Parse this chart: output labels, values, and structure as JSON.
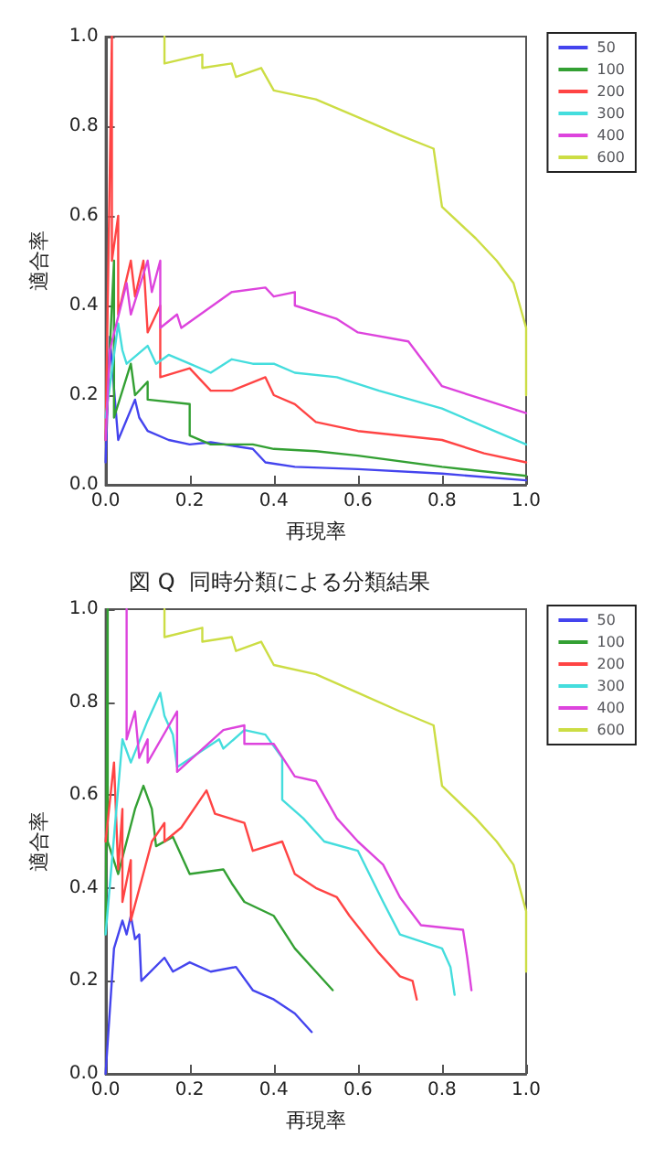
{
  "chart_data": [
    {
      "type": "line",
      "xlabel": "再現率",
      "ylabel": "適合率",
      "legend": "top right",
      "xlim": [
        0,
        1
      ],
      "ylim": [
        0,
        1
      ],
      "xticks": [
        {
          "value": 0,
          "label": "0.0"
        },
        {
          "value": 0.2,
          "label": "0.2"
        },
        {
          "value": 0.4,
          "label": "0.4"
        },
        {
          "value": 0.6,
          "label": "0.6"
        },
        {
          "value": 0.8,
          "label": "0.8"
        },
        {
          "value": 1,
          "label": "1.0"
        }
      ],
      "yticks": [
        {
          "value": 0,
          "label": "0.0"
        },
        {
          "value": 0.2,
          "label": "0.2"
        },
        {
          "value": 0.4,
          "label": "0.4"
        },
        {
          "value": 0.6,
          "label": "0.6"
        },
        {
          "value": 0.8,
          "label": "0.8"
        },
        {
          "value": 1,
          "label": "1.0"
        }
      ],
      "series": [
        {
          "name": "50",
          "color": "#4444ee",
          "x": [
            0,
            0.01,
            0.03,
            0.07,
            0.08,
            0.1,
            0.15,
            0.2,
            0.25,
            0.35,
            0.38,
            0.45,
            0.6,
            0.8,
            1.0
          ],
          "values": [
            0.05,
            0.33,
            0.1,
            0.19,
            0.15,
            0.12,
            0.1,
            0.09,
            0.095,
            0.08,
            0.05,
            0.04,
            0.035,
            0.025,
            0.01
          ]
        },
        {
          "name": "100",
          "color": "#33a033",
          "x": [
            0,
            0.02,
            0.02,
            0.06,
            0.07,
            0.1,
            0.1,
            0.2,
            0.2,
            0.25,
            0.35,
            0.4,
            0.5,
            0.6,
            0.8,
            1.0
          ],
          "values": [
            0.1,
            0.5,
            0.15,
            0.27,
            0.2,
            0.23,
            0.19,
            0.18,
            0.11,
            0.09,
            0.09,
            0.08,
            0.075,
            0.065,
            0.04,
            0.02
          ]
        },
        {
          "name": "200",
          "color": "#ff4444",
          "x": [
            0,
            0.015,
            0.015,
            0.03,
            0.03,
            0.06,
            0.07,
            0.09,
            0.1,
            0.13,
            0.13,
            0.2,
            0.25,
            0.3,
            0.38,
            0.4,
            0.45,
            0.5,
            0.6,
            0.8,
            0.9,
            1.0
          ],
          "values": [
            0.1,
            1.0,
            0.5,
            0.6,
            0.38,
            0.5,
            0.42,
            0.5,
            0.34,
            0.4,
            0.24,
            0.26,
            0.21,
            0.21,
            0.24,
            0.2,
            0.18,
            0.14,
            0.12,
            0.1,
            0.07,
            0.05
          ]
        },
        {
          "name": "300",
          "color": "#44dddd",
          "x": [
            0,
            0.03,
            0.04,
            0.05,
            0.1,
            0.12,
            0.15,
            0.2,
            0.25,
            0.3,
            0.35,
            0.4,
            0.45,
            0.55,
            0.65,
            0.8,
            0.9,
            1.0
          ],
          "values": [
            0.15,
            0.36,
            0.3,
            0.27,
            0.31,
            0.27,
            0.29,
            0.27,
            0.25,
            0.28,
            0.27,
            0.27,
            0.25,
            0.24,
            0.21,
            0.17,
            0.13,
            0.09
          ]
        },
        {
          "name": "400",
          "color": "#dd44dd",
          "x": [
            0,
            0.01,
            0.05,
            0.06,
            0.1,
            0.11,
            0.13,
            0.13,
            0.17,
            0.18,
            0.3,
            0.38,
            0.4,
            0.45,
            0.45,
            0.55,
            0.6,
            0.72,
            0.8,
            0.9,
            1.0
          ],
          "values": [
            0.1,
            0.3,
            0.45,
            0.38,
            0.5,
            0.43,
            0.5,
            0.35,
            0.38,
            0.35,
            0.43,
            0.44,
            0.42,
            0.43,
            0.4,
            0.37,
            0.34,
            0.32,
            0.22,
            0.19,
            0.16
          ]
        },
        {
          "name": "600",
          "color": "#ccdd44",
          "x": [
            0.14,
            0.14,
            0.23,
            0.23,
            0.3,
            0.31,
            0.37,
            0.4,
            0.5,
            0.6,
            0.7,
            0.78,
            0.8,
            0.88,
            0.93,
            0.97,
            1.0,
            1.0
          ],
          "values": [
            1.0,
            0.94,
            0.96,
            0.93,
            0.94,
            0.91,
            0.93,
            0.88,
            0.86,
            0.82,
            0.78,
            0.75,
            0.62,
            0.55,
            0.5,
            0.45,
            0.35,
            0.2
          ]
        }
      ]
    },
    {
      "type": "line",
      "title": "図 Q  同時分類による分類結果",
      "xlabel": "再現率",
      "ylabel": "適合率",
      "legend": "top right",
      "xlim": [
        0,
        1
      ],
      "ylim": [
        0,
        1
      ],
      "xticks": [
        {
          "value": 0,
          "label": "0.0"
        },
        {
          "value": 0.2,
          "label": "0.2"
        },
        {
          "value": 0.4,
          "label": "0.4"
        },
        {
          "value": 0.6,
          "label": "0.6"
        },
        {
          "value": 0.8,
          "label": "0.8"
        },
        {
          "value": 1,
          "label": "1.0"
        }
      ],
      "yticks": [
        {
          "value": 0,
          "label": "0.0"
        },
        {
          "value": 0.2,
          "label": "0.2"
        },
        {
          "value": 0.4,
          "label": "0.4"
        },
        {
          "value": 0.6,
          "label": "0.6"
        },
        {
          "value": 0.8,
          "label": "0.8"
        },
        {
          "value": 1,
          "label": "1.0"
        }
      ],
      "series": [
        {
          "name": "50",
          "color": "#4444ee",
          "x": [
            0,
            0.02,
            0.04,
            0.05,
            0.06,
            0.07,
            0.08,
            0.085,
            0.14,
            0.16,
            0.2,
            0.25,
            0.31,
            0.35,
            0.4,
            0.45,
            0.49
          ],
          "values": [
            0,
            0.27,
            0.33,
            0.3,
            0.34,
            0.29,
            0.3,
            0.2,
            0.25,
            0.22,
            0.24,
            0.22,
            0.23,
            0.18,
            0.16,
            0.13,
            0.09
          ]
        },
        {
          "name": "100",
          "color": "#33a033",
          "x": [
            0,
            0.005,
            0.005,
            0.03,
            0.07,
            0.09,
            0.11,
            0.12,
            0.16,
            0.2,
            0.28,
            0.3,
            0.33,
            0.4,
            0.45,
            0.5,
            0.54
          ],
          "values": [
            0.3,
            1.0,
            0.5,
            0.43,
            0.57,
            0.62,
            0.57,
            0.49,
            0.51,
            0.43,
            0.44,
            0.41,
            0.37,
            0.34,
            0.27,
            0.22,
            0.18
          ]
        },
        {
          "name": "200",
          "color": "#ff4444",
          "x": [
            0,
            0.02,
            0.03,
            0.04,
            0.04,
            0.06,
            0.06,
            0.11,
            0.14,
            0.14,
            0.18,
            0.24,
            0.26,
            0.33,
            0.35,
            0.42,
            0.45,
            0.5,
            0.55,
            0.58,
            0.65,
            0.7,
            0.73,
            0.74
          ],
          "values": [
            0.5,
            0.67,
            0.44,
            0.57,
            0.37,
            0.46,
            0.33,
            0.5,
            0.54,
            0.5,
            0.53,
            0.61,
            0.56,
            0.54,
            0.48,
            0.5,
            0.43,
            0.4,
            0.38,
            0.34,
            0.26,
            0.21,
            0.2,
            0.16
          ]
        },
        {
          "name": "300",
          "color": "#44dddd",
          "x": [
            0,
            0.04,
            0.06,
            0.1,
            0.13,
            0.14,
            0.16,
            0.17,
            0.27,
            0.28,
            0.33,
            0.38,
            0.42,
            0.42,
            0.47,
            0.52,
            0.6,
            0.66,
            0.7,
            0.8,
            0.82,
            0.83
          ],
          "values": [
            0.3,
            0.72,
            0.67,
            0.76,
            0.82,
            0.77,
            0.73,
            0.66,
            0.72,
            0.7,
            0.74,
            0.73,
            0.68,
            0.59,
            0.55,
            0.5,
            0.48,
            0.37,
            0.3,
            0.27,
            0.23,
            0.17
          ]
        },
        {
          "name": "400",
          "color": "#dd44dd",
          "x": [
            0.05,
            0.05,
            0.07,
            0.08,
            0.1,
            0.1,
            0.17,
            0.17,
            0.28,
            0.33,
            0.33,
            0.4,
            0.45,
            0.5,
            0.55,
            0.6,
            0.66,
            0.7,
            0.75,
            0.85,
            0.86,
            0.87
          ],
          "values": [
            1.0,
            0.72,
            0.78,
            0.68,
            0.72,
            0.67,
            0.78,
            0.65,
            0.74,
            0.75,
            0.71,
            0.71,
            0.64,
            0.63,
            0.55,
            0.5,
            0.45,
            0.38,
            0.32,
            0.31,
            0.25,
            0.18
          ]
        },
        {
          "name": "600",
          "color": "#ccdd44",
          "x": [
            0.14,
            0.14,
            0.23,
            0.23,
            0.3,
            0.31,
            0.37,
            0.4,
            0.5,
            0.6,
            0.7,
            0.78,
            0.8,
            0.88,
            0.93,
            0.97,
            1.0,
            1.0
          ],
          "values": [
            1.0,
            0.94,
            0.96,
            0.93,
            0.94,
            0.91,
            0.93,
            0.88,
            0.86,
            0.82,
            0.78,
            0.75,
            0.62,
            0.55,
            0.5,
            0.45,
            0.35,
            0.22
          ]
        }
      ]
    }
  ]
}
